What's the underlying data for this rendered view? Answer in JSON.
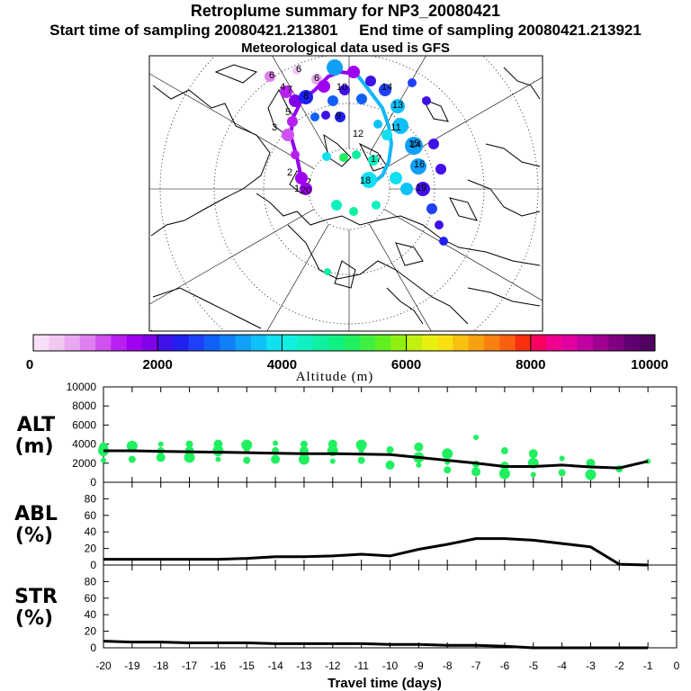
{
  "header": {
    "title": "Retroplume summary for NP3_20080421",
    "sampling": "Start time of sampling 20080421.213801     End time of sampling 20080421.213921",
    "met": "Meteorological data used is GFS"
  },
  "colorbar": {
    "label": "Altitude (m)",
    "ticks": [
      "0",
      "2000",
      "4000",
      "6000",
      "8000",
      "10000"
    ],
    "colors": [
      "#f8e0f8",
      "#f0c8f0",
      "#e8a8f0",
      "#e080f0",
      "#d050f0",
      "#b820f0",
      "#a000f0",
      "#8000e8",
      "#4010e8",
      "#2020f0",
      "#2040f8",
      "#1060f8",
      "#1080f8",
      "#10a0f8",
      "#10c0f8",
      "#10e0f0",
      "#10f0e0",
      "#10f0c0",
      "#10f0a0",
      "#10f080",
      "#20f060",
      "#40f040",
      "#60f020",
      "#90f010",
      "#c0f010",
      "#e8f010",
      "#f8e010",
      "#f8c010",
      "#f8a010",
      "#f88010",
      "#f86010",
      "#f83010",
      "#f80060",
      "#f00090",
      "#e000a0",
      "#c000a0",
      "#a00090",
      "#800080",
      "#600070",
      "#500060"
    ]
  },
  "chart_data": [
    {
      "type": "line",
      "name": "ALT",
      "ylabel_line1": "ALT",
      "ylabel_line2": "(m)",
      "ylim": [
        0,
        10000
      ],
      "yticks": [
        "0",
        "2000",
        "4000",
        "6000",
        "8000",
        "10000"
      ],
      "x": [
        -20,
        -19,
        -18,
        -17,
        -16,
        -15,
        -14,
        -13,
        -12,
        -11,
        -10,
        -9,
        -8,
        -7,
        -6,
        -5,
        -4,
        -3,
        -2,
        -1
      ],
      "values": [
        3300,
        3300,
        3250,
        3200,
        3150,
        3100,
        3050,
        3000,
        3000,
        2950,
        2900,
        2600,
        2300,
        2000,
        1650,
        1650,
        1800,
        1600,
        1500,
        2200
      ],
      "scatter_color": "#20f060",
      "scatter_points": [
        [
          -20,
          2300
        ],
        [
          -20,
          3300
        ],
        [
          -20,
          3700
        ],
        [
          -19,
          2400
        ],
        [
          -19,
          3400
        ],
        [
          -19,
          3800
        ],
        [
          -18,
          2600
        ],
        [
          -18,
          3300
        ],
        [
          -18,
          4000
        ],
        [
          -17,
          2600
        ],
        [
          -17,
          3300
        ],
        [
          -17,
          4000
        ],
        [
          -16,
          2400
        ],
        [
          -16,
          3300
        ],
        [
          -16,
          4000
        ],
        [
          -15,
          2300
        ],
        [
          -15,
          3300
        ],
        [
          -15,
          3900
        ],
        [
          -14,
          2400
        ],
        [
          -14,
          3300
        ],
        [
          -14,
          4100
        ],
        [
          -13,
          2400
        ],
        [
          -13,
          3300
        ],
        [
          -13,
          4000
        ],
        [
          -12,
          2200
        ],
        [
          -12,
          3300
        ],
        [
          -12,
          4000
        ],
        [
          -11,
          2300
        ],
        [
          -11,
          3300
        ],
        [
          -11,
          3900
        ],
        [
          -10,
          1800
        ],
        [
          -10,
          3400
        ],
        [
          -9,
          1800
        ],
        [
          -9,
          2600
        ],
        [
          -9,
          3700
        ],
        [
          -8,
          1300
        ],
        [
          -8,
          2100
        ],
        [
          -8,
          3000
        ],
        [
          -7,
          1100
        ],
        [
          -7,
          1900
        ],
        [
          -7,
          4700
        ],
        [
          -6,
          900
        ],
        [
          -6,
          1700
        ],
        [
          -6,
          3300
        ],
        [
          -5,
          800
        ],
        [
          -5,
          2000
        ],
        [
          -5,
          3000
        ],
        [
          -4,
          1000
        ],
        [
          -4,
          2500
        ],
        [
          -3,
          800
        ],
        [
          -3,
          2000
        ],
        [
          -2,
          1400
        ],
        [
          -1,
          2200
        ]
      ]
    },
    {
      "type": "line",
      "name": "ABL",
      "ylabel_line1": "ABL",
      "ylabel_line2": "(%)",
      "ylim": [
        0,
        100
      ],
      "yticks": [
        "0",
        "20",
        "40",
        "60",
        "80"
      ],
      "x": [
        -20,
        -19,
        -18,
        -17,
        -16,
        -15,
        -14,
        -13,
        -12,
        -11,
        -10,
        -9,
        -8,
        -7,
        -6,
        -5,
        -4,
        -3,
        -2,
        -1
      ],
      "values": [
        7,
        7,
        7,
        7,
        7,
        8,
        10,
        10,
        11,
        13,
        11,
        19,
        25,
        32,
        32,
        30,
        26,
        22,
        1,
        0
      ]
    },
    {
      "type": "line",
      "name": "STR",
      "ylabel_line1": "STR",
      "ylabel_line2": "(%)",
      "ylim": [
        0,
        100
      ],
      "yticks": [
        "0",
        "20",
        "40",
        "60",
        "80"
      ],
      "x": [
        -20,
        -19,
        -18,
        -17,
        -16,
        -15,
        -14,
        -13,
        -12,
        -11,
        -10,
        -9,
        -8,
        -7,
        -6,
        -5,
        -4,
        -3,
        -2,
        -1
      ],
      "values": [
        8,
        7,
        7,
        6,
        6,
        6,
        5,
        5,
        5,
        5,
        4,
        4,
        3,
        3,
        2,
        0,
        0,
        0,
        0,
        0
      ],
      "xticks": [
        "-20",
        "-19",
        "-18",
        "-17",
        "-16",
        "-15",
        "-14",
        "-13",
        "-12",
        "-11",
        "-10",
        "-9",
        "-8",
        "-7",
        "-6",
        "-5",
        "-4",
        "-3",
        "-2",
        "-1",
        "0"
      ],
      "xlabel": "Travel time (days)",
      "xlim": [
        -20,
        0
      ]
    }
  ],
  "map": {
    "labels": [
      "6",
      "6",
      "6",
      "7",
      "8",
      "9",
      "14",
      "13",
      "10",
      "11",
      "12",
      "14",
      "15",
      "16",
      "17",
      "18",
      "19",
      "20",
      "2",
      "1",
      "3",
      "4",
      "5"
    ],
    "ring_center": [
      388,
      210
    ]
  }
}
